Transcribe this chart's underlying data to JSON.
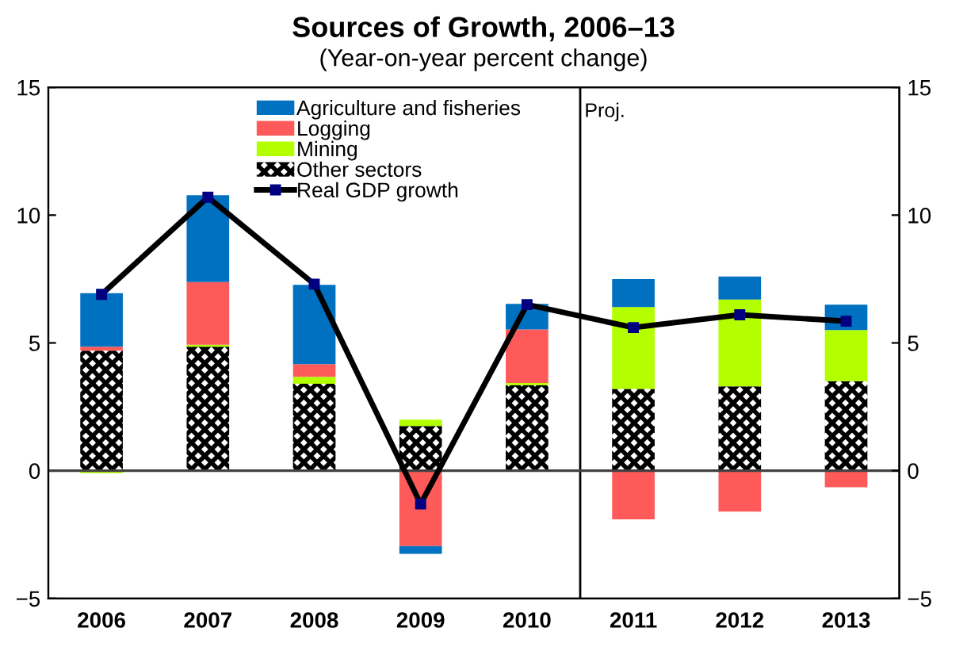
{
  "chart_data": {
    "type": "bar",
    "stacked": true,
    "title": "Sources of Growth, 2006–13",
    "subtitle": "(Year-on-year percent change)",
    "x": [
      2006,
      2007,
      2008,
      2009,
      2010,
      2011,
      2012,
      2013
    ],
    "xlim": [
      2005.5,
      2013.5
    ],
    "xticks": [
      2006,
      2007,
      2008,
      2009,
      2010,
      2011,
      2012,
      2013
    ],
    "series": [
      {
        "name": "Other sectors",
        "color": "#000000",
        "values": [
          4.7,
          4.85,
          3.4,
          1.75,
          3.35,
          3.2,
          3.3,
          3.5
        ]
      },
      {
        "name": "Mining",
        "color": "#b3ff00",
        "values": [
          -0.1,
          0.08,
          0.27,
          0.25,
          0.08,
          3.2,
          3.4,
          2.0
        ]
      },
      {
        "name": "Logging",
        "color": "#ff5a5a",
        "values": [
          0.15,
          2.45,
          0.5,
          -2.95,
          2.1,
          -1.9,
          -1.6,
          -0.65
        ]
      },
      {
        "name": "Agriculture and fisheries",
        "color": "#0070c0",
        "values": [
          2.1,
          3.4,
          3.1,
          -0.3,
          1.0,
          1.1,
          0.9,
          1.0
        ]
      },
      {
        "name": "Real GDP growth",
        "type": "line",
        "color": "#000000",
        "marker": "square",
        "values": [
          6.9,
          10.7,
          7.3,
          -1.3,
          6.5,
          5.6,
          6.1,
          5.85
        ]
      }
    ],
    "ylim": [
      -5,
      15
    ],
    "yticks": [
      -5,
      0,
      5,
      10,
      15
    ],
    "y2lim": [
      -5,
      15
    ],
    "y2ticks": [
      -5,
      0,
      5,
      10,
      15
    ],
    "ref_lines": [
      {
        "axis": "x",
        "value": 2010.5,
        "label": "Proj.",
        "color": "#000000"
      },
      {
        "axis": "y",
        "value": 0,
        "color": "#404040"
      }
    ],
    "legend": "top",
    "grid": false
  }
}
